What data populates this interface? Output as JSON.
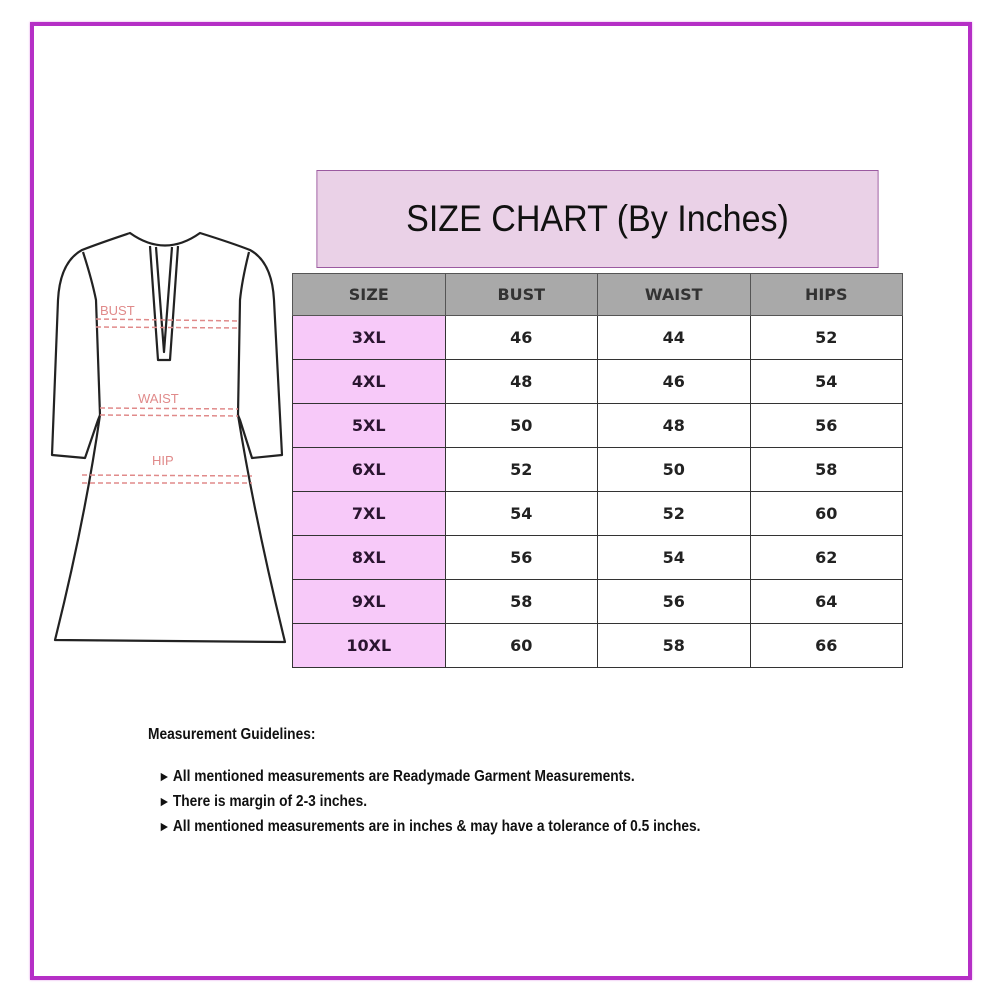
{
  "dress": {
    "labels": {
      "bust": "BUST",
      "waist": "WAIST",
      "hip": "HIP"
    }
  },
  "size_chart": {
    "title": "SIZE CHART (By Inches)",
    "columns": [
      "SIZE",
      "BUST",
      "WAIST",
      "HIPS"
    ],
    "rows": [
      [
        "3XL",
        "46",
        "44",
        "52"
      ],
      [
        "4XL",
        "48",
        "46",
        "54"
      ],
      [
        "5XL",
        "50",
        "48",
        "56"
      ],
      [
        "6XL",
        "52",
        "50",
        "58"
      ],
      [
        "7XL",
        "54",
        "52",
        "60"
      ],
      [
        "8XL",
        "56",
        "54",
        "62"
      ],
      [
        "9XL",
        "58",
        "56",
        "64"
      ],
      [
        "10XL",
        "60",
        "58",
        "66"
      ]
    ]
  },
  "guidelines": {
    "heading": "Measurement Guidelines:",
    "items": [
      "All mentioned measurements are Readymade Garment Measurements.",
      "There is margin of 2-3 inches.",
      "All mentioned measurements are in inches & may have a tolerance of 0.5 inches."
    ]
  },
  "colors": {
    "frame": "#b52fc6",
    "title_bg": "#ead1e7",
    "header_bg": "#a9a9a9",
    "size_cell_bg": "#f7c9f9",
    "measure_label": "#e08a8a"
  }
}
